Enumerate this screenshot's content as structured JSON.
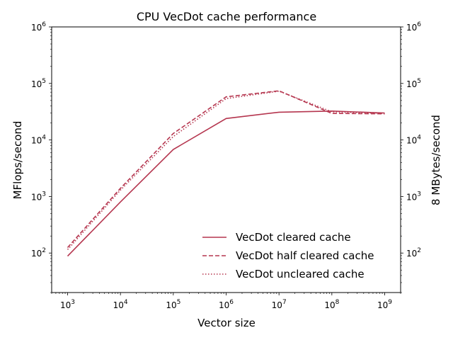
{
  "chart_data": {
    "type": "line",
    "title": "CPU VecDot cache performance",
    "xlabel": "Vector size",
    "ylabel": "MFlops/second",
    "ylabel_right": "8 MBytes/second",
    "xscale": "log",
    "yscale": "log",
    "xlim": [
      500,
      2000000000
    ],
    "ylim": [
      20,
      1000000
    ],
    "x_ticks": [
      {
        "exp": "3",
        "value": 1000
      },
      {
        "exp": "4",
        "value": 10000
      },
      {
        "exp": "5",
        "value": 100000
      },
      {
        "exp": "6",
        "value": 1000000
      },
      {
        "exp": "7",
        "value": 10000000
      },
      {
        "exp": "8",
        "value": 100000000
      },
      {
        "exp": "9",
        "value": 1000000000
      }
    ],
    "y_ticks": [
      {
        "exp": "2",
        "value": 100
      },
      {
        "exp": "3",
        "value": 1000
      },
      {
        "exp": "4",
        "value": 10000
      },
      {
        "exp": "5",
        "value": 100000
      },
      {
        "exp": "6",
        "value": 1000000
      }
    ],
    "tick_base": "10",
    "color": "#b5364f",
    "grid": false,
    "legend_position": "lower-right",
    "series": [
      {
        "name": "VecDot cleared cache",
        "style": "solid",
        "x": [
          1000,
          10000,
          100000,
          1000000,
          10000000,
          100000000,
          1000000000
        ],
        "y": [
          88,
          800,
          6800,
          24000,
          31000,
          32500,
          30000
        ]
      },
      {
        "name": "VecDot half cleared cache",
        "style": "dashed",
        "x": [
          1000,
          10000,
          100000,
          1000000,
          10000000,
          100000000,
          1000000000
        ],
        "y": [
          125,
          1400,
          13000,
          58000,
          74000,
          29500,
          29000
        ]
      },
      {
        "name": "VecDot uncleared cache",
        "style": "dotted",
        "x": [
          1000,
          10000,
          100000,
          1000000,
          10000000,
          100000000,
          1000000000
        ],
        "y": [
          115,
          1300,
          11500,
          54000,
          73000,
          31500,
          29500
        ]
      }
    ]
  }
}
